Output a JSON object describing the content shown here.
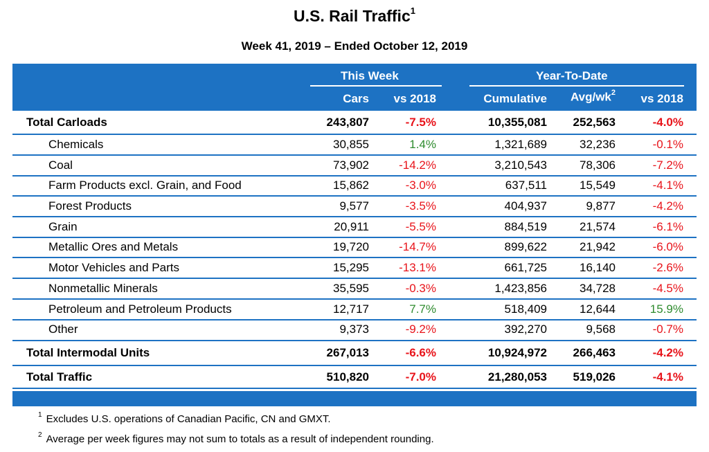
{
  "title": "U.S. Rail Traffic",
  "title_sup": "1",
  "subtitle": "Week 41, 2019 – Ended October 12, 2019",
  "header": {
    "this_week": "This Week",
    "ytd": "Year-To-Date",
    "cars": "Cars",
    "vs2018": "vs 2018",
    "cumulative": "Cumulative",
    "avg": "Avg/wk",
    "avg_sup": "2",
    "vs2018_ytd": "vs 2018"
  },
  "rows": [
    {
      "label": "Total Carloads",
      "cars": "243,807",
      "vs": "-7.5%",
      "cum": "10,355,081",
      "avg": "252,563",
      "ytd": "-4.0%"
    },
    {
      "label": "Chemicals",
      "cars": "30,855",
      "vs": "1.4%",
      "cum": "1,321,689",
      "avg": "32,236",
      "ytd": "-0.1%"
    },
    {
      "label": "Coal",
      "cars": "73,902",
      "vs": "-14.2%",
      "cum": "3,210,543",
      "avg": "78,306",
      "ytd": "-7.2%"
    },
    {
      "label": "Farm Products excl. Grain, and Food",
      "cars": "15,862",
      "vs": "-3.0%",
      "cum": "637,511",
      "avg": "15,549",
      "ytd": "-4.1%"
    },
    {
      "label": "Forest Products",
      "cars": "9,577",
      "vs": "-3.5%",
      "cum": "404,937",
      "avg": "9,877",
      "ytd": "-4.2%"
    },
    {
      "label": "Grain",
      "cars": "20,911",
      "vs": "-5.5%",
      "cum": "884,519",
      "avg": "21,574",
      "ytd": "-6.1%"
    },
    {
      "label": "Metallic Ores and Metals",
      "cars": "19,720",
      "vs": "-14.7%",
      "cum": "899,622",
      "avg": "21,942",
      "ytd": "-6.0%"
    },
    {
      "label": "Motor Vehicles and Parts",
      "cars": "15,295",
      "vs": "-13.1%",
      "cum": "661,725",
      "avg": "16,140",
      "ytd": "-2.6%"
    },
    {
      "label": "Nonmetallic Minerals",
      "cars": "35,595",
      "vs": "-0.3%",
      "cum": "1,423,856",
      "avg": "34,728",
      "ytd": "-4.5%"
    },
    {
      "label": "Petroleum and Petroleum Products",
      "cars": "12,717",
      "vs": "7.7%",
      "cum": "518,409",
      "avg": "12,644",
      "ytd": "15.9%"
    },
    {
      "label": "Other",
      "cars": "9,373",
      "vs": "-9.2%",
      "cum": "392,270",
      "avg": "9,568",
      "ytd": "-0.7%"
    },
    {
      "label": "Total Intermodal Units",
      "cars": "267,013",
      "vs": "-6.6%",
      "cum": "10,924,972",
      "avg": "266,463",
      "ytd": "-4.2%"
    },
    {
      "label": "Total Traffic",
      "cars": "510,820",
      "vs": "-7.0%",
      "cum": "21,280,053",
      "avg": "519,026",
      "ytd": "-4.1%"
    }
  ],
  "footnotes": [
    {
      "sup": "1",
      "text": "Excludes U.S. operations of Canadian Pacific, CN and GMXT."
    },
    {
      "sup": "2",
      "text": "Average per week figures may not sum to totals as a result of independent rounding."
    }
  ],
  "colors": {
    "header_blue": "#1d72c3",
    "negative": "#e8131a",
    "positive": "#2e8b2e"
  }
}
